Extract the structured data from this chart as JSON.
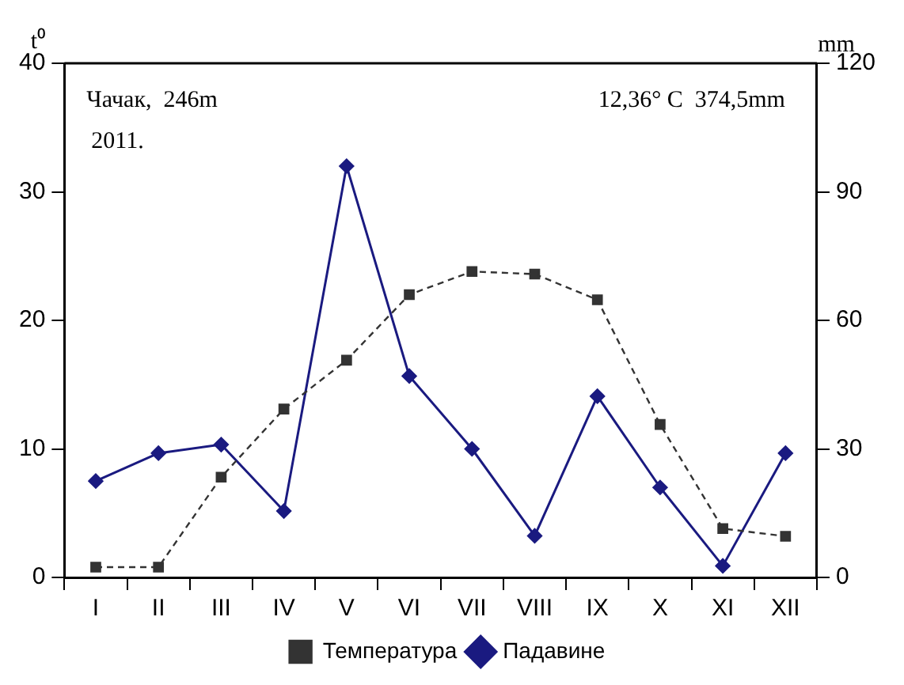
{
  "chart_data": {
    "type": "line",
    "ylabel": "t⁰",
    "y2label": "mm",
    "annotations": [
      "Чачак,  246m",
      "2011.",
      "12,36° C  374,5mm"
    ],
    "categories": [
      "I",
      "II",
      "III",
      "IV",
      "V",
      "VI",
      "VII",
      "VIII",
      "IX",
      "X",
      "XI",
      "XII"
    ],
    "series": [
      {
        "name": "Температура",
        "color": "#333333",
        "marker": "square",
        "line_style": "dashed",
        "values": [
          0.8,
          0.8,
          7.8,
          13.1,
          16.9,
          22.0,
          23.8,
          23.6,
          21.6,
          11.9,
          3.8,
          3.2
        ]
      },
      {
        "name": "Падавине",
        "color": "#1a1a80",
        "marker": "diamond",
        "line_style": "solid",
        "axis": "y2",
        "values": [
          22.5,
          29,
          31,
          15.5,
          96,
          47,
          30,
          9.7,
          42.3,
          21,
          2.7,
          29
        ]
      }
    ],
    "ylim": [
      0,
      40
    ],
    "yticks": [
      0,
      10,
      20,
      30,
      40
    ],
    "y2lim": [
      0,
      120
    ],
    "y2ticks": [
      0,
      30,
      60,
      90,
      120
    ],
    "grid": false,
    "legend": "bottom"
  }
}
